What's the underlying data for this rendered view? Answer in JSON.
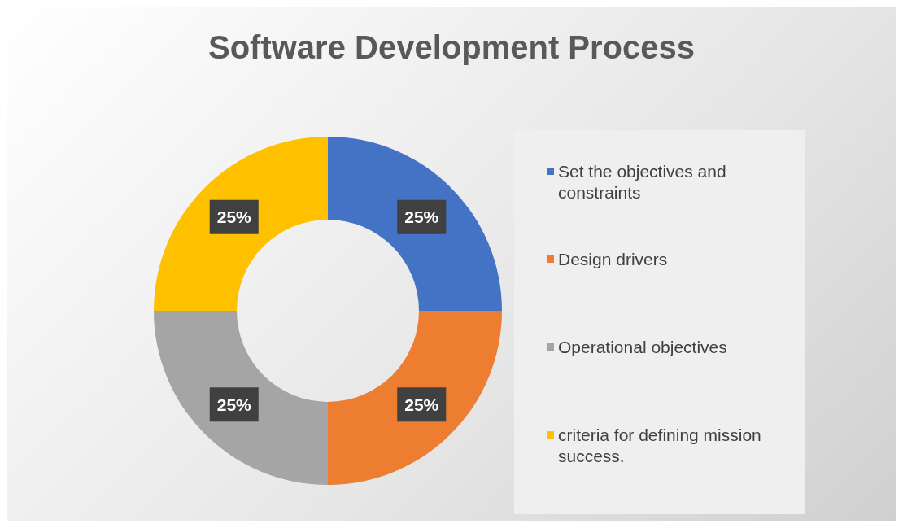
{
  "chart_data": {
    "type": "donut",
    "title": "Software Development Process",
    "categories": [
      "Set the objectives and constraints",
      "Design drivers",
      "Operational objectives",
      "criteria for defining mission success."
    ],
    "values": [
      25,
      25,
      25,
      25
    ],
    "colors": [
      "#4472c4",
      "#ed7d31",
      "#a5a5a5",
      "#ffc000"
    ],
    "value_labels": [
      "25%",
      "25%",
      "25%",
      "25%"
    ],
    "legend": "right"
  }
}
